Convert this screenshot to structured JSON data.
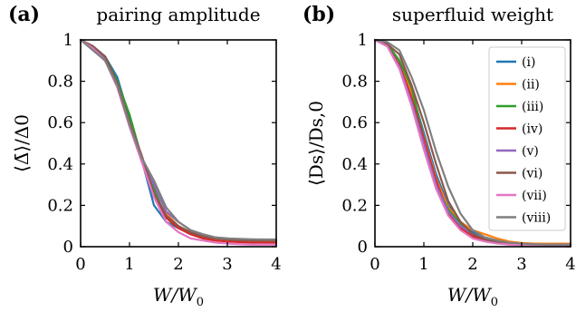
{
  "figure": {
    "panels": [
      {
        "panel_label": "(a)",
        "title": "pairing amplitude",
        "xlabel": "W/W0",
        "ylabel": "⟨Δ̄⟩/Δ0"
      },
      {
        "panel_label": "(b)",
        "title": "superfluid weight",
        "xlabel": "W/W0",
        "ylabel": "⟨Ds⟩/Ds,0"
      }
    ]
  },
  "chart_data": [
    {
      "type": "line",
      "panel_label": "(a)",
      "title": "pairing amplitude",
      "xlabel": "W/W0",
      "ylabel": "⟨Δ̄⟩/Δ0",
      "xlim": [
        0,
        4
      ],
      "ylim": [
        0,
        1
      ],
      "xticks": [
        0,
        1,
        2,
        3,
        4
      ],
      "xtick_labels": [
        "0",
        "1",
        "2",
        "3",
        "4"
      ],
      "yticks": [
        0,
        0.2,
        0.4,
        0.6,
        0.8,
        1
      ],
      "ytick_labels": [
        "0",
        "0.2",
        "0.4",
        "0.6",
        "0.8",
        "1"
      ],
      "grid": false,
      "x": [
        0,
        0.25,
        0.5,
        0.75,
        1.0,
        1.25,
        1.5,
        1.75,
        2.0,
        2.25,
        2.5,
        2.75,
        3.0,
        3.25,
        3.5,
        3.75,
        4.0
      ],
      "series": [
        {
          "name": "(i)",
          "color": "#1f77b4",
          "values": [
            1.0,
            0.97,
            0.92,
            0.82,
            0.62,
            0.42,
            0.2,
            0.12,
            0.09,
            0.06,
            0.05,
            0.04,
            0.035,
            0.032,
            0.03,
            0.03,
            0.03
          ]
        },
        {
          "name": "(ii)",
          "color": "#ff7f0e",
          "values": [
            1.0,
            0.96,
            0.91,
            0.79,
            0.6,
            0.44,
            0.25,
            0.16,
            0.1,
            0.07,
            0.05,
            0.04,
            0.035,
            0.03,
            0.03,
            0.03,
            0.03
          ]
        },
        {
          "name": "(iii)",
          "color": "#2ca02c",
          "values": [
            1.0,
            0.96,
            0.92,
            0.8,
            0.64,
            0.43,
            0.28,
            0.14,
            0.09,
            0.07,
            0.05,
            0.04,
            0.035,
            0.032,
            0.03,
            0.03,
            0.03
          ]
        },
        {
          "name": "(iv)",
          "color": "#d62728",
          "values": [
            1.0,
            0.96,
            0.9,
            0.79,
            0.6,
            0.44,
            0.24,
            0.14,
            0.09,
            0.06,
            0.04,
            0.03,
            0.025,
            0.022,
            0.02,
            0.02,
            0.02
          ]
        },
        {
          "name": "(v)",
          "color": "#9467bd",
          "values": [
            1.0,
            0.96,
            0.91,
            0.78,
            0.59,
            0.42,
            0.3,
            0.17,
            0.12,
            0.08,
            0.06,
            0.045,
            0.04,
            0.035,
            0.033,
            0.032,
            0.03
          ]
        },
        {
          "name": "(vi)",
          "color": "#8c564b",
          "values": [
            1.0,
            0.97,
            0.92,
            0.79,
            0.6,
            0.44,
            0.26,
            0.15,
            0.1,
            0.07,
            0.05,
            0.04,
            0.035,
            0.03,
            0.03,
            0.03,
            0.03
          ]
        },
        {
          "name": "(vii)",
          "color": "#e377c2",
          "values": [
            1.0,
            0.96,
            0.9,
            0.77,
            0.58,
            0.41,
            0.24,
            0.12,
            0.07,
            0.04,
            0.03,
            0.02,
            0.015,
            0.012,
            0.01,
            0.01,
            0.01
          ]
        },
        {
          "name": "(viii)",
          "color": "#7f7f7f",
          "values": [
            1.0,
            0.95,
            0.9,
            0.78,
            0.59,
            0.43,
            0.32,
            0.19,
            0.12,
            0.08,
            0.06,
            0.045,
            0.04,
            0.038,
            0.036,
            0.035,
            0.035
          ]
        }
      ]
    },
    {
      "type": "line",
      "panel_label": "(b)",
      "title": "superfluid weight",
      "xlabel": "W/W0",
      "ylabel": "⟨Ds⟩/Ds,0",
      "xlim": [
        0,
        4
      ],
      "ylim": [
        0,
        1
      ],
      "xticks": [
        0,
        1,
        2,
        3,
        4
      ],
      "xtick_labels": [
        "0",
        "1",
        "2",
        "3",
        "4"
      ],
      "yticks": [
        0,
        0.2,
        0.4,
        0.6,
        0.8,
        1
      ],
      "ytick_labels": [
        "0",
        "0.2",
        "0.4",
        "0.6",
        "0.8",
        "1"
      ],
      "grid": false,
      "legend": "right",
      "x": [
        0,
        0.25,
        0.5,
        0.75,
        1.0,
        1.25,
        1.5,
        1.75,
        2.0,
        2.25,
        2.5,
        2.75,
        3.0,
        3.25,
        3.5,
        3.75,
        4.0
      ],
      "series": [
        {
          "name": "(i)",
          "color": "#1f77b4",
          "values": [
            1.0,
            0.98,
            0.9,
            0.75,
            0.55,
            0.35,
            0.2,
            0.12,
            0.07,
            0.045,
            0.03,
            0.02,
            0.015,
            0.012,
            0.01,
            0.01,
            0.01
          ]
        },
        {
          "name": "(ii)",
          "color": "#ff7f0e",
          "values": [
            1.0,
            0.97,
            0.9,
            0.74,
            0.53,
            0.33,
            0.19,
            0.12,
            0.08,
            0.06,
            0.04,
            0.025,
            0.018,
            0.015,
            0.015,
            0.015,
            0.015
          ]
        },
        {
          "name": "(iii)",
          "color": "#2ca02c",
          "values": [
            1.0,
            0.98,
            0.9,
            0.77,
            0.52,
            0.3,
            0.18,
            0.11,
            0.06,
            0.04,
            0.025,
            0.015,
            0.01,
            0.01,
            0.01,
            0.01,
            0.01
          ]
        },
        {
          "name": "(iv)",
          "color": "#d62728",
          "values": [
            1.0,
            0.97,
            0.88,
            0.72,
            0.52,
            0.32,
            0.16,
            0.09,
            0.05,
            0.03,
            0.02,
            0.012,
            0.008,
            0.007,
            0.005,
            0.005,
            0.005
          ]
        },
        {
          "name": "(v)",
          "color": "#9467bd",
          "values": [
            1.0,
            0.97,
            0.87,
            0.7,
            0.5,
            0.3,
            0.17,
            0.1,
            0.06,
            0.04,
            0.025,
            0.015,
            0.01,
            0.01,
            0.01,
            0.01,
            0.01
          ]
        },
        {
          "name": "(vi)",
          "color": "#8c564b",
          "values": [
            1.0,
            0.98,
            0.93,
            0.78,
            0.6,
            0.4,
            0.22,
            0.12,
            0.06,
            0.035,
            0.02,
            0.012,
            0.008,
            0.007,
            0.006,
            0.005,
            0.005
          ]
        },
        {
          "name": "(vii)",
          "color": "#e377c2",
          "values": [
            1.0,
            0.97,
            0.86,
            0.68,
            0.47,
            0.28,
            0.15,
            0.08,
            0.04,
            0.025,
            0.015,
            0.01,
            0.008,
            0.007,
            0.006,
            0.005,
            0.005
          ]
        },
        {
          "name": "(viii)",
          "color": "#7f7f7f",
          "values": [
            1.0,
            0.99,
            0.95,
            0.82,
            0.66,
            0.46,
            0.29,
            0.16,
            0.08,
            0.045,
            0.03,
            0.02,
            0.015,
            0.012,
            0.01,
            0.01,
            0.01
          ]
        }
      ]
    }
  ]
}
